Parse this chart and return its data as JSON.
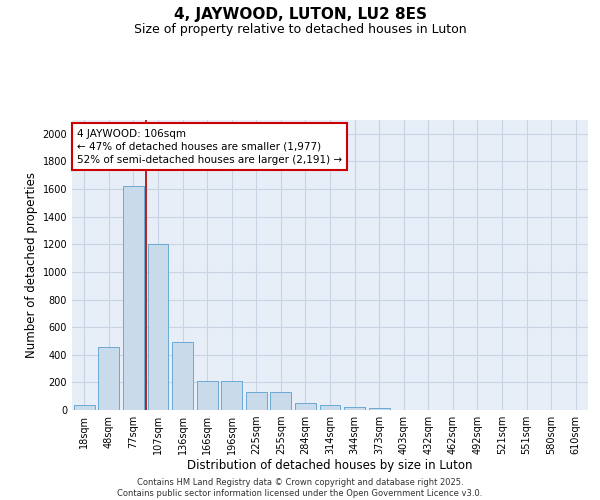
{
  "title": "4, JAYWOOD, LUTON, LU2 8ES",
  "subtitle": "Size of property relative to detached houses in Luton",
  "xlabel": "Distribution of detached houses by size in Luton",
  "ylabel": "Number of detached properties",
  "categories": [
    "18sqm",
    "48sqm",
    "77sqm",
    "107sqm",
    "136sqm",
    "166sqm",
    "196sqm",
    "225sqm",
    "255sqm",
    "284sqm",
    "314sqm",
    "344sqm",
    "373sqm",
    "403sqm",
    "432sqm",
    "462sqm",
    "492sqm",
    "521sqm",
    "551sqm",
    "580sqm",
    "610sqm"
  ],
  "values": [
    35,
    455,
    1620,
    1205,
    495,
    210,
    210,
    130,
    130,
    50,
    35,
    20,
    15,
    0,
    0,
    0,
    0,
    0,
    0,
    0,
    0
  ],
  "bar_color": "#c9daea",
  "bar_edge_color": "#6aaad4",
  "vline_color": "#aa0000",
  "annotation_text": "4 JAYWOOD: 106sqm\n← 47% of detached houses are smaller (1,977)\n52% of semi-detached houses are larger (2,191) →",
  "annotation_box_color": "#cc0000",
  "ylim": [
    0,
    2100
  ],
  "yticks": [
    0,
    200,
    400,
    600,
    800,
    1000,
    1200,
    1400,
    1600,
    1800,
    2000
  ],
  "grid_color": "#c8d4e4",
  "bg_color": "#e8eef8",
  "footer_line1": "Contains HM Land Registry data © Crown copyright and database right 2025.",
  "footer_line2": "Contains public sector information licensed under the Open Government Licence v3.0.",
  "title_fontsize": 11,
  "subtitle_fontsize": 9,
  "xlabel_fontsize": 8.5,
  "ylabel_fontsize": 8.5,
  "tick_fontsize": 7,
  "annot_fontsize": 7.5,
  "footer_fontsize": 6
}
